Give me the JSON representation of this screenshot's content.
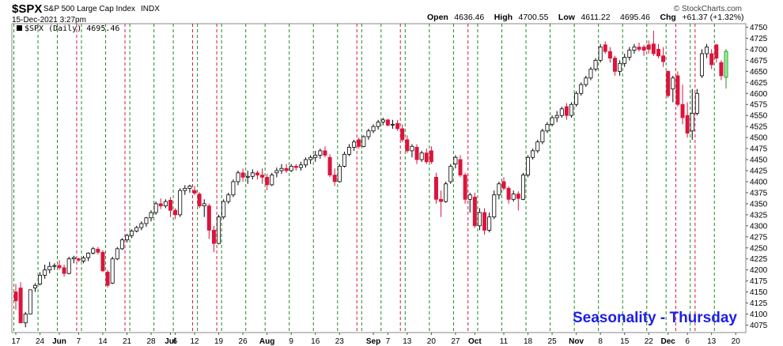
{
  "header": {
    "symbol": "$SPX",
    "name": "S&P 500 Large Cap Index",
    "exchange": "INDX",
    "date": "15-Dec-2021 3:27pm",
    "open_label": "Open",
    "open": "4636.46",
    "high_label": "High",
    "high": "4700.55",
    "low_label": "Low",
    "low": "4611.22",
    "close_label": "4695.46",
    "chg_label": "Chg",
    "chg": "+61.37 (+1.32%)"
  },
  "watermark": "© StockCharts.com",
  "legend": "$SPX (Daily) 4695.46",
  "annotation": "Seasonality - Thursday",
  "colors": {
    "up_candle": "#000000",
    "down_candle": "#dc143c",
    "last_candle": "#90ee90",
    "green_line": "#228b22",
    "red_line": "#dc143c"
  },
  "chart_data": {
    "type": "candlestick",
    "ylim": [
      4058,
      4758
    ],
    "y_ticks": [
      4075,
      4100,
      4125,
      4150,
      4175,
      4200,
      4225,
      4250,
      4275,
      4300,
      4325,
      4350,
      4375,
      4400,
      4425,
      4450,
      4475,
      4500,
      4525,
      4550,
      4575,
      4600,
      4625,
      4650,
      4675,
      4700,
      4725,
      4750
    ],
    "x_tick_labels": [
      {
        "label": "17",
        "i": 0,
        "bold": false
      },
      {
        "label": "24",
        "i": 5,
        "bold": false
      },
      {
        "label": "Jun",
        "i": 9,
        "bold": true
      },
      {
        "label": "7",
        "i": 13,
        "bold": false
      },
      {
        "label": "14",
        "i": 18,
        "bold": false
      },
      {
        "label": "21",
        "i": 23,
        "bold": false
      },
      {
        "label": "28",
        "i": 28,
        "bold": false
      },
      {
        "label": "Jul",
        "i": 32,
        "bold": true
      },
      {
        "label": "6",
        "i": 33,
        "bold": false
      },
      {
        "label": "12",
        "i": 37,
        "bold": false
      },
      {
        "label": "19",
        "i": 42,
        "bold": false
      },
      {
        "label": "26",
        "i": 47,
        "bold": false
      },
      {
        "label": "Aug",
        "i": 52,
        "bold": true
      },
      {
        "label": "9",
        "i": 57,
        "bold": false
      },
      {
        "label": "16",
        "i": 62,
        "bold": false
      },
      {
        "label": "23",
        "i": 67,
        "bold": false
      },
      {
        "label": "Sep",
        "i": 74,
        "bold": true
      },
      {
        "label": "7",
        "i": 77,
        "bold": false
      },
      {
        "label": "13",
        "i": 81,
        "bold": false
      },
      {
        "label": "20",
        "i": 86,
        "bold": false
      },
      {
        "label": "27",
        "i": 91,
        "bold": false
      },
      {
        "label": "Oct",
        "i": 95,
        "bold": true
      },
      {
        "label": "11",
        "i": 101,
        "bold": false
      },
      {
        "label": "18",
        "i": 106,
        "bold": false
      },
      {
        "label": "25",
        "i": 111,
        "bold": false
      },
      {
        "label": "Nov",
        "i": 116,
        "bold": true
      },
      {
        "label": "8",
        "i": 121,
        "bold": false
      },
      {
        "label": "15",
        "i": 126,
        "bold": false
      },
      {
        "label": "22",
        "i": 131,
        "bold": false
      },
      {
        "label": "Dec",
        "i": 135,
        "bold": true
      },
      {
        "label": "6",
        "i": 139,
        "bold": false
      },
      {
        "label": "13",
        "i": 144,
        "bold": false
      },
      {
        "label": "20",
        "i": 149,
        "bold": false
      }
    ],
    "green_lines": [
      0,
      5,
      9,
      14,
      19,
      24,
      29,
      33,
      38,
      43,
      48,
      52,
      57,
      62,
      67,
      72,
      76,
      81,
      86,
      91,
      96,
      101,
      106,
      111,
      116,
      121,
      126,
      131,
      135,
      140,
      145
    ],
    "red_lines": [
      13,
      23,
      37,
      42,
      71,
      80,
      94,
      137,
      141
    ],
    "ohlc": [
      [
        4150,
        4168,
        4110,
        4130
      ],
      [
        4159,
        4172,
        4080,
        4080
      ],
      [
        4080,
        4105,
        4070,
        4100
      ],
      [
        4100,
        4155,
        4100,
        4155
      ],
      [
        4159,
        4170,
        4150,
        4165
      ],
      [
        4168,
        4195,
        4165,
        4188
      ],
      [
        4188,
        4212,
        4180,
        4200
      ],
      [
        4200,
        4218,
        4192,
        4208
      ],
      [
        4208,
        4215,
        4200,
        4210
      ],
      [
        4210,
        4222,
        4200,
        4205
      ],
      [
        4205,
        4212,
        4185,
        4192
      ],
      [
        4192,
        4230,
        4190,
        4225
      ],
      [
        4225,
        4232,
        4215,
        4228
      ],
      [
        4225,
        4228,
        4218,
        4222
      ],
      [
        4220,
        4232,
        4215,
        4227
      ],
      [
        4228,
        4240,
        4220,
        4238
      ],
      [
        4238,
        4252,
        4235,
        4248
      ],
      [
        4247,
        4252,
        4235,
        4240
      ],
      [
        4240,
        4245,
        4195,
        4198
      ],
      [
        4195,
        4200,
        4160,
        4165
      ],
      [
        4170,
        4230,
        4168,
        4225
      ],
      [
        4225,
        4252,
        4222,
        4248
      ],
      [
        4248,
        4272,
        4245,
        4268
      ],
      [
        4268,
        4282,
        4262,
        4278
      ],
      [
        4278,
        4292,
        4272,
        4288
      ],
      [
        4288,
        4300,
        4285,
        4296
      ],
      [
        4296,
        4310,
        4290,
        4305
      ],
      [
        4305,
        4320,
        4298,
        4318
      ],
      [
        4318,
        4335,
        4310,
        4330
      ],
      [
        4330,
        4355,
        4325,
        4350
      ],
      [
        4350,
        4362,
        4338,
        4345
      ],
      [
        4345,
        4360,
        4340,
        4355
      ],
      [
        4358,
        4365,
        4320,
        4335
      ],
      [
        4335,
        4340,
        4315,
        4325
      ],
      [
        4325,
        4385,
        4320,
        4380
      ],
      [
        4380,
        4392,
        4370,
        4385
      ],
      [
        4385,
        4393,
        4375,
        4390
      ],
      [
        4380,
        4390,
        4370,
        4374
      ],
      [
        4372,
        4376,
        4340,
        4345
      ],
      [
        4345,
        4360,
        4320,
        4350
      ],
      [
        4345,
        4350,
        4270,
        4290
      ],
      [
        4290,
        4300,
        4240,
        4260
      ],
      [
        4260,
        4325,
        4258,
        4320
      ],
      [
        4320,
        4360,
        4315,
        4355
      ],
      [
        4355,
        4375,
        4350,
        4370
      ],
      [
        4370,
        4405,
        4365,
        4400
      ],
      [
        4400,
        4425,
        4392,
        4420
      ],
      [
        4420,
        4430,
        4400,
        4410
      ],
      [
        4410,
        4425,
        4395,
        4412
      ],
      [
        4412,
        4428,
        4405,
        4420
      ],
      [
        4420,
        4425,
        4405,
        4415
      ],
      [
        4415,
        4430,
        4395,
        4410
      ],
      [
        4410,
        4418,
        4380,
        4393
      ],
      [
        4393,
        4420,
        4390,
        4415
      ],
      [
        4420,
        4432,
        4410,
        4425
      ],
      [
        4425,
        4440,
        4418,
        4430
      ],
      [
        4430,
        4440,
        4420,
        4425
      ],
      [
        4425,
        4440,
        4422,
        4435
      ],
      [
        4435,
        4440,
        4425,
        4432
      ],
      [
        4432,
        4445,
        4425,
        4438
      ],
      [
        4438,
        4455,
        4432,
        4450
      ],
      [
        4450,
        4460,
        4440,
        4455
      ],
      [
        4455,
        4470,
        4445,
        4460
      ],
      [
        4460,
        4475,
        4452,
        4470
      ],
      [
        4470,
        4480,
        4455,
        4460
      ],
      [
        4455,
        4462,
        4410,
        4415
      ],
      [
        4415,
        4430,
        4390,
        4400
      ],
      [
        4400,
        4440,
        4398,
        4435
      ],
      [
        4435,
        4468,
        4432,
        4462
      ],
      [
        4462,
        4485,
        4458,
        4478
      ],
      [
        4478,
        4495,
        4470,
        4490
      ],
      [
        4495,
        4500,
        4475,
        4480
      ],
      [
        4480,
        4505,
        4478,
        4502
      ],
      [
        4502,
        4520,
        4495,
        4515
      ],
      [
        4515,
        4530,
        4510,
        4525
      ],
      [
        4525,
        4540,
        4518,
        4535
      ],
      [
        4535,
        4545,
        4528,
        4540
      ],
      [
        4540,
        4542,
        4525,
        4528
      ],
      [
        4530,
        4540,
        4520,
        4530
      ],
      [
        4532,
        4540,
        4515,
        4520
      ],
      [
        4520,
        4530,
        4490,
        4495
      ],
      [
        4495,
        4505,
        4465,
        4470
      ],
      [
        4470,
        4485,
        4455,
        4480
      ],
      [
        4478,
        4485,
        4440,
        4450
      ],
      [
        4450,
        4470,
        4445,
        4465
      ],
      [
        4465,
        4475,
        4440,
        4445
      ],
      [
        4470,
        4480,
        4440,
        4445
      ],
      [
        4410,
        4420,
        4350,
        4360
      ],
      [
        4360,
        4380,
        4320,
        4355
      ],
      [
        4355,
        4400,
        4352,
        4395
      ],
      [
        4400,
        4440,
        4395,
        4435
      ],
      [
        4440,
        4460,
        4430,
        4455
      ],
      [
        4450,
        4460,
        4410,
        4415
      ],
      [
        4415,
        4420,
        4350,
        4360
      ],
      [
        4360,
        4375,
        4330,
        4370
      ],
      [
        4365,
        4375,
        4295,
        4300
      ],
      [
        4300,
        4340,
        4290,
        4330
      ],
      [
        4330,
        4340,
        4280,
        4290
      ],
      [
        4290,
        4330,
        4285,
        4320
      ],
      [
        4320,
        4380,
        4315,
        4370
      ],
      [
        4370,
        4400,
        4360,
        4395
      ],
      [
        4400,
        4410,
        4380,
        4385
      ],
      [
        4385,
        4390,
        4350,
        4360
      ],
      [
        4360,
        4380,
        4355,
        4372
      ],
      [
        4372,
        4378,
        4335,
        4362
      ],
      [
        4360,
        4420,
        4358,
        4415
      ],
      [
        4415,
        4460,
        4410,
        4455
      ],
      [
        4455,
        4475,
        4450,
        4470
      ],
      [
        4470,
        4495,
        4465,
        4490
      ],
      [
        4490,
        4520,
        4485,
        4515
      ],
      [
        4515,
        4535,
        4510,
        4530
      ],
      [
        4530,
        4550,
        4525,
        4545
      ],
      [
        4545,
        4560,
        4535,
        4550
      ],
      [
        4550,
        4570,
        4545,
        4565
      ],
      [
        4570,
        4578,
        4540,
        4550
      ],
      [
        4550,
        4580,
        4545,
        4575
      ],
      [
        4575,
        4605,
        4570,
        4600
      ],
      [
        4600,
        4625,
        4595,
        4620
      ],
      [
        4620,
        4640,
        4615,
        4635
      ],
      [
        4635,
        4660,
        4630,
        4655
      ],
      [
        4655,
        4680,
        4650,
        4675
      ],
      [
        4675,
        4712,
        4670,
        4705
      ],
      [
        4710,
        4718,
        4690,
        4695
      ],
      [
        4695,
        4705,
        4670,
        4680
      ],
      [
        4680,
        4685,
        4640,
        4650
      ],
      [
        4650,
        4675,
        4640,
        4668
      ],
      [
        4668,
        4690,
        4660,
        4682
      ],
      [
        4682,
        4705,
        4675,
        4698
      ],
      [
        4698,
        4712,
        4690,
        4705
      ],
      [
        4705,
        4715,
        4695,
        4700
      ],
      [
        4705,
        4710,
        4685,
        4698
      ],
      [
        4710,
        4720,
        4690,
        4700
      ],
      [
        4712,
        4742,
        4685,
        4690
      ],
      [
        4700,
        4712,
        4680,
        4685
      ],
      [
        4685,
        4705,
        4660,
        4672
      ],
      [
        4650,
        4652,
        4590,
        4595
      ],
      [
        4610,
        4640,
        4580,
        4635
      ],
      [
        4640,
        4650,
        4570,
        4575
      ],
      [
        4575,
        4620,
        4530,
        4545
      ],
      [
        4550,
        4580,
        4500,
        4510
      ],
      [
        4515,
        4610,
        4495,
        4555
      ],
      [
        4555,
        4610,
        4550,
        4600
      ],
      [
        4640,
        4700,
        4635,
        4690
      ],
      [
        4690,
        4712,
        4680,
        4705
      ],
      [
        4690,
        4700,
        4655,
        4665
      ],
      [
        4710,
        4712,
        4670,
        4680
      ],
      [
        4670,
        4675,
        4630,
        4640
      ],
      [
        4636.46,
        4700.55,
        4611.22,
        4695.46
      ]
    ]
  }
}
